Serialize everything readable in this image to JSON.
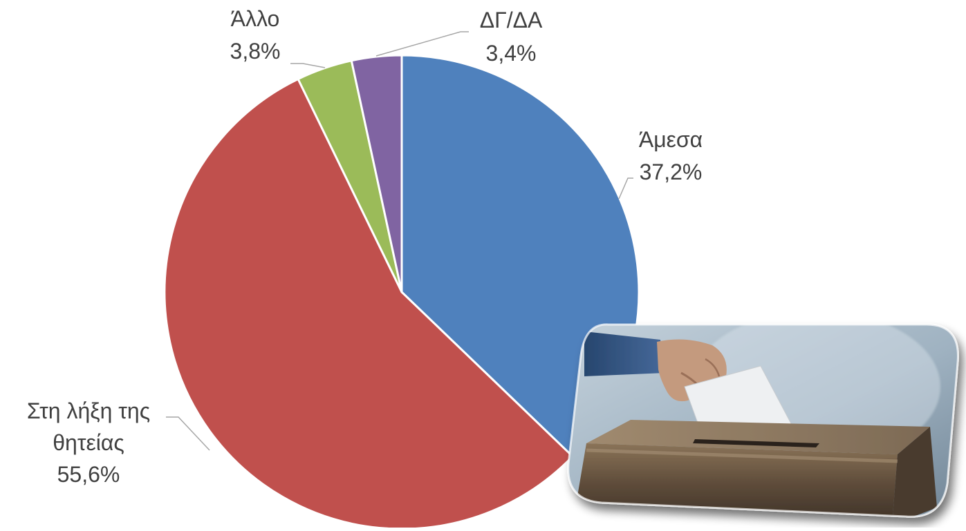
{
  "chart_data": {
    "type": "pie",
    "slices": [
      {
        "label": "Άμεσα",
        "value": 37.2,
        "value_label": "37,2%",
        "color": "#4F81BD"
      },
      {
        "label": "Στη λήξη της θητείας",
        "label_lines": [
          "Στη λήξη της",
          "θητείας"
        ],
        "value": 55.6,
        "value_label": "55,6%",
        "color": "#C0504D"
      },
      {
        "label": "Άλλο",
        "value": 3.8,
        "value_label": "3,8%",
        "color": "#9BBB59"
      },
      {
        "label": "ΔΓ/ΔΑ",
        "value": 3.4,
        "value_label": "3,4%",
        "color": "#8064A2"
      }
    ],
    "start": "12 o'clock",
    "direction": "clockwise",
    "legend": "none",
    "data_labels": "outside with leader lines"
  },
  "illustration": {
    "subject": "hand placing a ballot paper into a cardboard ballot box",
    "style": "photo with soft rounded corners and drop shadow, bottom-right"
  }
}
